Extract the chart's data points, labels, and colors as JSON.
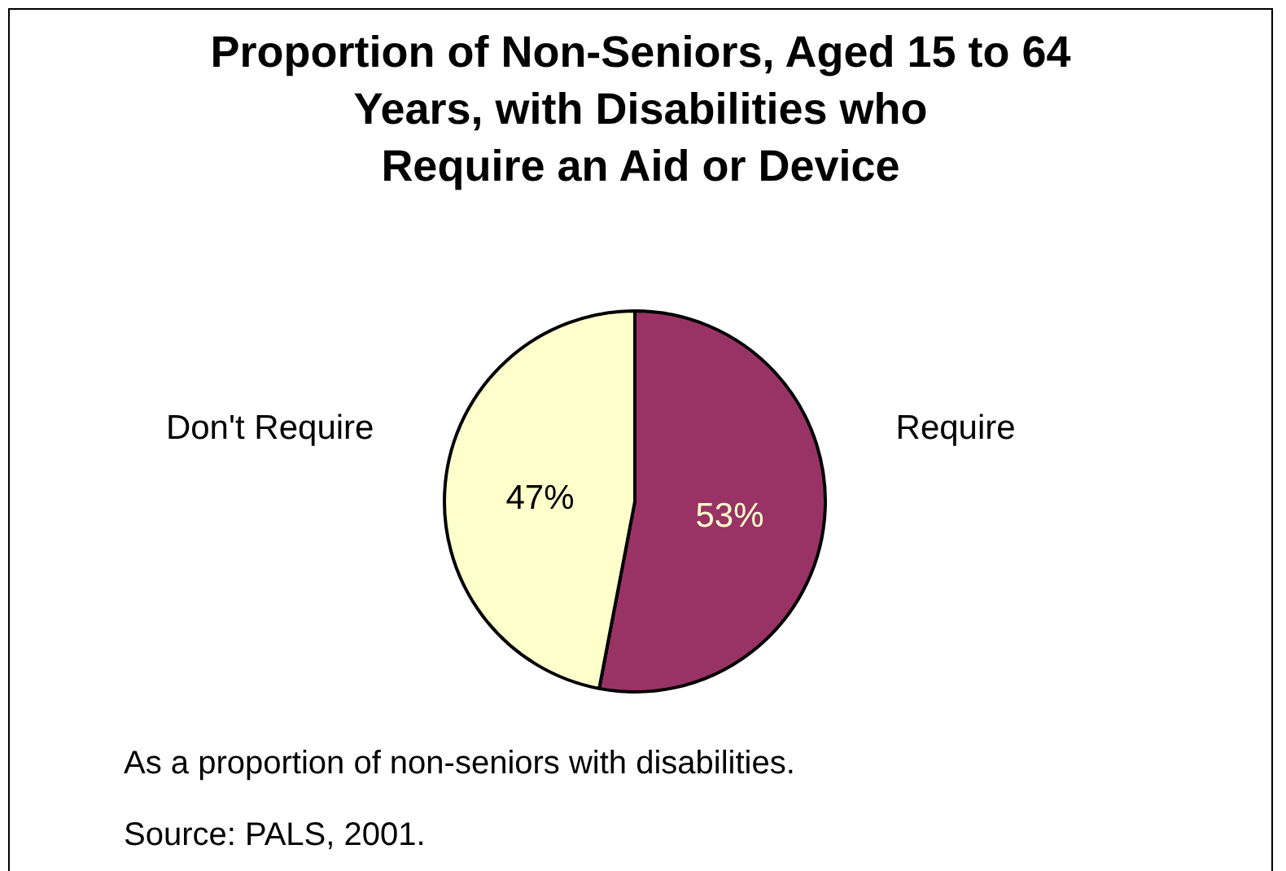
{
  "chart_data": {
    "type": "pie",
    "title": "Proportion of Non-Seniors, Aged 15 to 64\nYears, with Disabilities who\nRequire an Aid or Device",
    "categories": [
      "Require",
      "Don't Require"
    ],
    "values": [
      53,
      47
    ],
    "colors": [
      "#993366",
      "#ffffcc"
    ],
    "value_labels": [
      "53%",
      "47%"
    ],
    "legend": false,
    "annotations": [
      "As a proportion of non-seniors with disabilities.",
      "Source: PALS, 2001."
    ]
  }
}
